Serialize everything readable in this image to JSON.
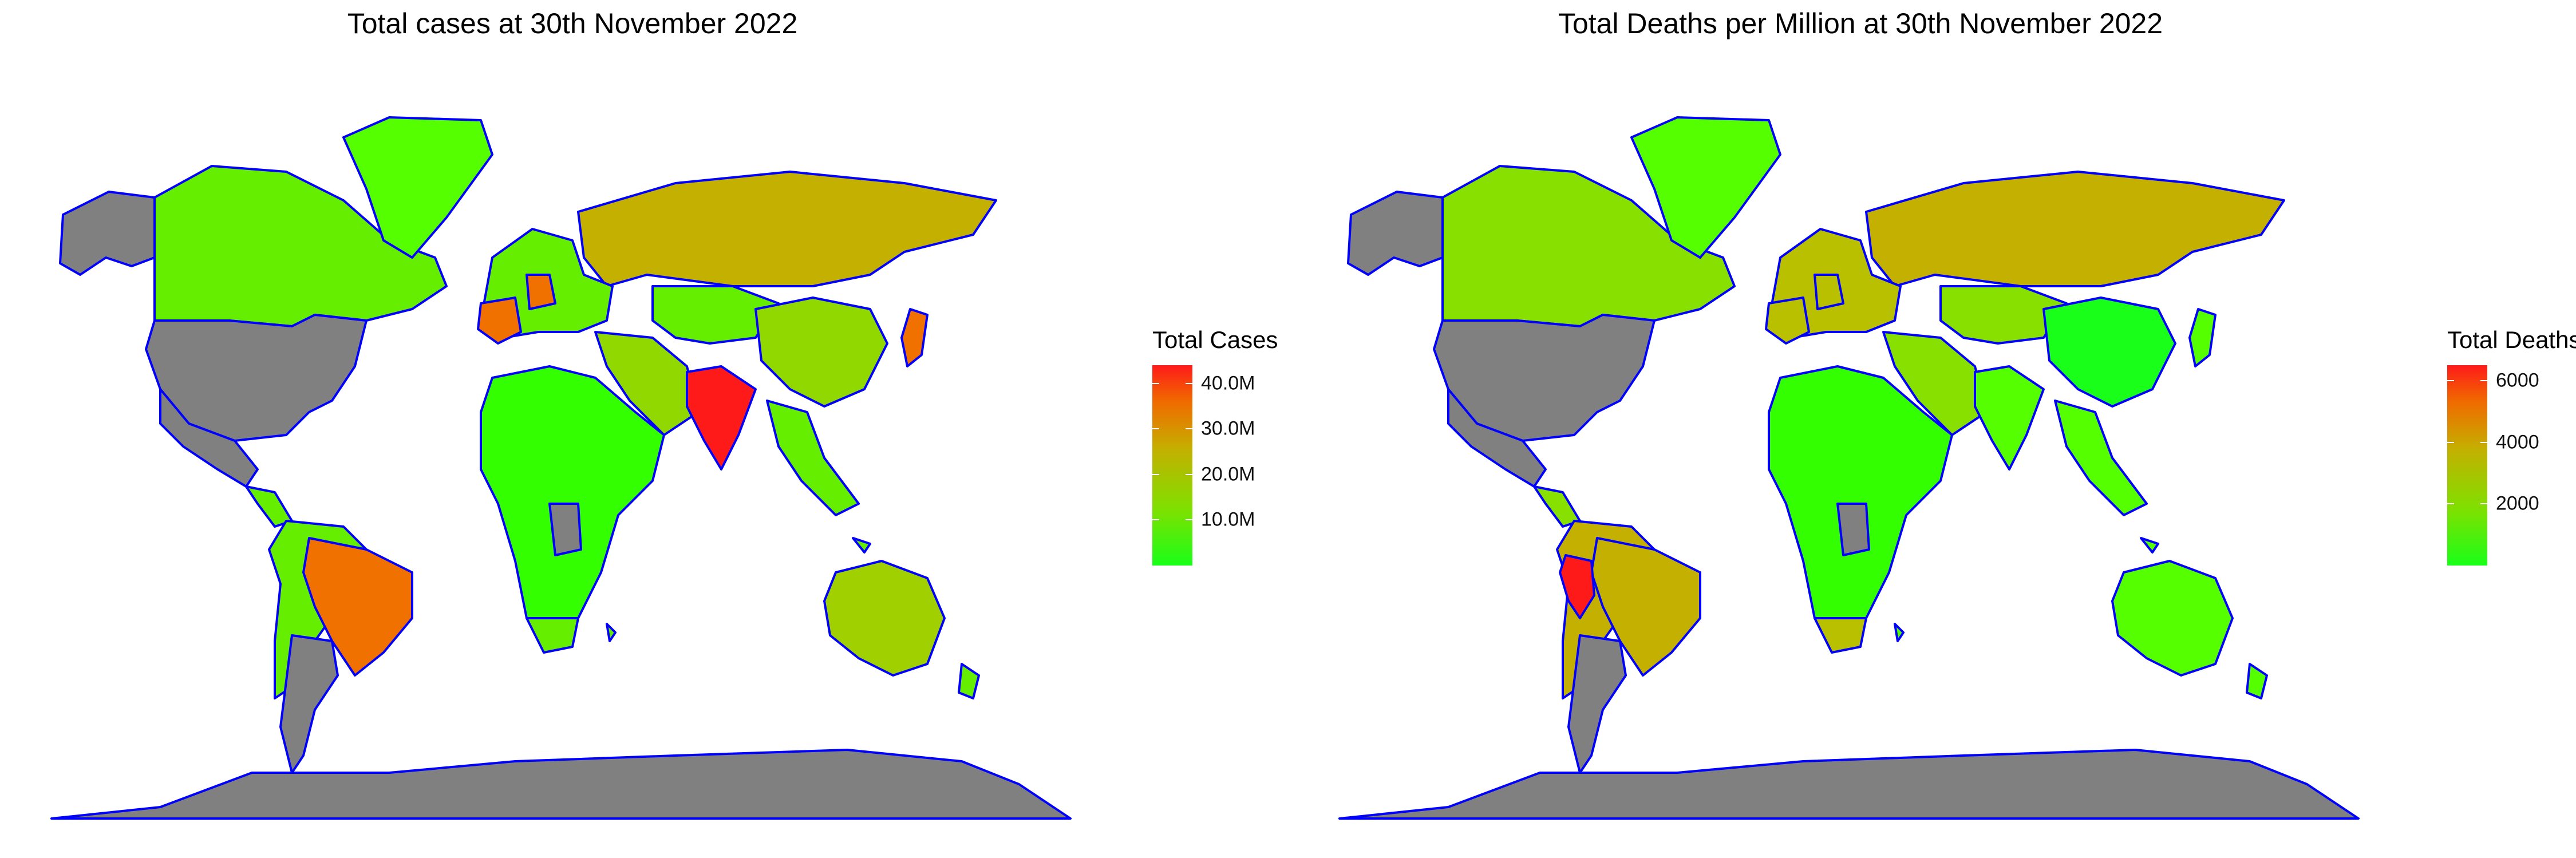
{
  "maps": [
    {
      "title": "Total cases at 30th November 2022",
      "legend": {
        "title": "Total Cases",
        "ticks": [
          {
            "label": "40.0M",
            "value": 40000000
          },
          {
            "label": "30.0M",
            "value": 30000000
          },
          {
            "label": "20.0M",
            "value": 20000000
          },
          {
            "label": "10.0M",
            "value": 10000000
          }
        ],
        "range": [
          0,
          44000000
        ],
        "colors": [
          "#19ff19",
          "#7fe000",
          "#c4b000",
          "#f06a00",
          "#ff1a1a"
        ]
      },
      "fills": {
        "usa": "#808080",
        "canada": "#66ee00",
        "alaska": "#808080",
        "greenland": "#55ff00",
        "mexico": "#808080",
        "central_america": "#66ee00",
        "south_america": "#66ee00",
        "brazil": "#f07000",
        "argentina": "#808080",
        "europe": "#66ee00",
        "france": "#f07000",
        "germany": "#f07000",
        "russia": "#c4b000",
        "middle_east": "#90d800",
        "africa": "#33ff00",
        "congo": "#808080",
        "south_africa": "#66ee00",
        "india": "#ff1a1a",
        "china": "#90d800",
        "central_asia": "#66ee00",
        "southeast_asia": "#66ee00",
        "japan": "#f07000",
        "australia": "#a0d000",
        "antarctica": "#808080",
        "islands": "#66ee00"
      }
    },
    {
      "title": "Total Deaths per Million at 30th November 2022",
      "legend": {
        "title": "Total Deaths per Million",
        "ticks": [
          {
            "label": "6000",
            "value": 6000
          },
          {
            "label": "4000",
            "value": 4000
          },
          {
            "label": "2000",
            "value": 2000
          }
        ],
        "range": [
          0,
          6500
        ],
        "colors": [
          "#19ff19",
          "#7fe000",
          "#c4b000",
          "#f06a00",
          "#ff1a1a"
        ]
      },
      "fills": {
        "usa": "#808080",
        "canada": "#88e000",
        "alaska": "#808080",
        "greenland": "#55ff00",
        "mexico": "#808080",
        "central_america": "#88e000",
        "south_america": "#c4b000",
        "brazil": "#c4b000",
        "argentina": "#808080",
        "peru": "#ff1a1a",
        "europe": "#b8c000",
        "france": "#b8c000",
        "germany": "#b8c000",
        "russia": "#c4b000",
        "middle_east": "#88e000",
        "africa": "#33ff00",
        "congo": "#808080",
        "south_africa": "#b8c000",
        "india": "#55ff00",
        "china": "#19ff19",
        "central_asia": "#88e000",
        "southeast_asia": "#55ff00",
        "japan": "#55ff00",
        "australia": "#55ff00",
        "antarctica": "#808080",
        "islands": "#55ff00"
      }
    }
  ]
}
